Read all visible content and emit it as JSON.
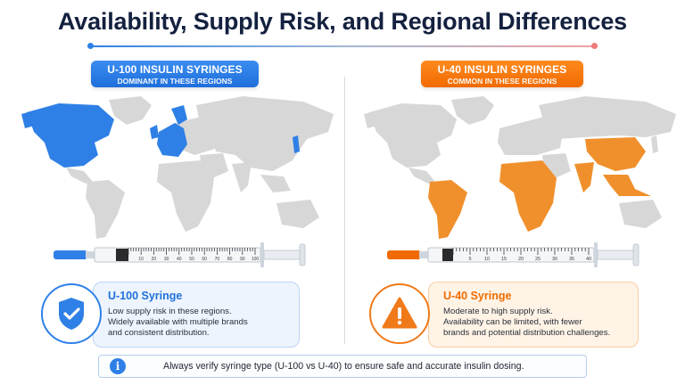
{
  "title": "Availability, Supply Risk, and Regional Differences",
  "colors": {
    "u100": "#2f80e6",
    "u40": "#f07a1a",
    "map_base": "#d7d7d7"
  },
  "left": {
    "banner_line1": "U-100 INSULIN SYRINGES",
    "banner_line2": "DOMINANT IN THESE REGIONS",
    "highlighted_regions": [
      "North America",
      "Western Europe",
      "Japan"
    ],
    "syringe_scale": [
      "10",
      "20",
      "30",
      "40",
      "50",
      "60",
      "70",
      "80",
      "90",
      "100"
    ],
    "icon": "shield-check-icon",
    "card_title": "U-100 Syringe",
    "card_lines": [
      "Low supply risk in these regions.",
      "Widely available with multiple brands",
      "and consistent distribution."
    ]
  },
  "right": {
    "banner_line1": "U-40 INSULIN SYRINGES",
    "banner_line2": "COMMON IN THESE REGIONS",
    "highlighted_regions": [
      "South America",
      "Africa",
      "South Asia",
      "Southeast Asia",
      "China"
    ],
    "syringe_scale": [
      "5",
      "10",
      "15",
      "20",
      "25",
      "30",
      "35",
      "40"
    ],
    "icon": "warning-icon",
    "card_title": "U-40 Syringe",
    "card_lines": [
      "Moderate to high supply risk.",
      "Availability can be limited, with fewer",
      "brands and potential distribution challenges."
    ]
  },
  "note": {
    "icon": "info-icon",
    "text": "Always verify syringe type (U-100 vs U-40) to ensure safe and accurate insulin dosing."
  }
}
